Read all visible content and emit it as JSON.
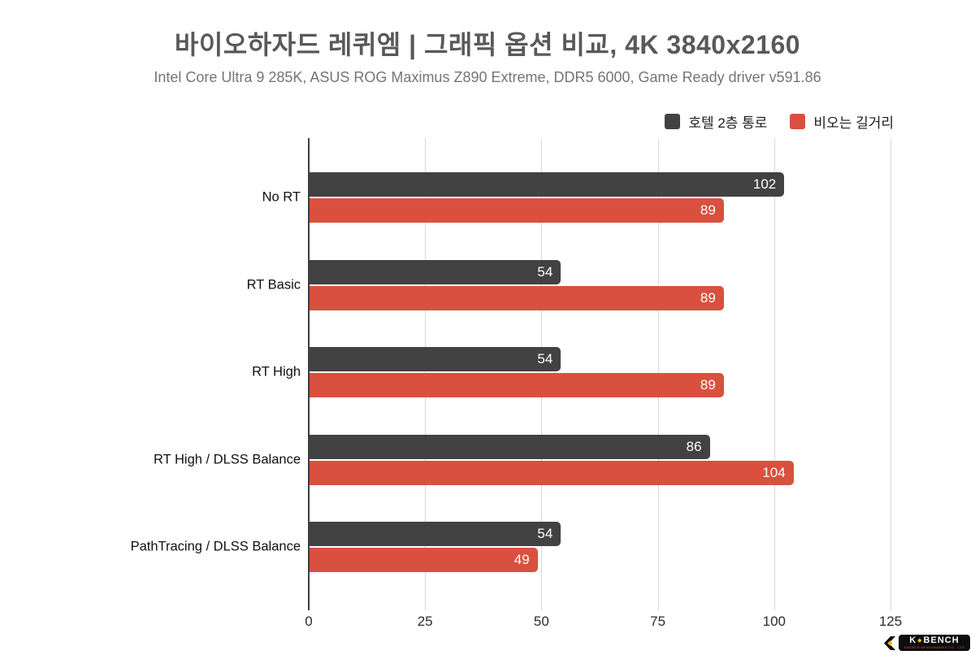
{
  "header": {
    "title": "바이오하자드 레퀴엠 | 그래픽 옵션 비교, 4K 3840x2160",
    "subtitle": "Intel Core Ultra 9 285K, ASUS ROG Maximus Z890 Extreme, DDR5 6000, Game Ready driver v591.86"
  },
  "colors": {
    "series1": "#424242",
    "series2": "#d9503f",
    "grid": "#d9d9d9",
    "axis": "#3d3d3d",
    "title": "#595959",
    "subtitle": "#757575"
  },
  "chart_data": {
    "type": "bar",
    "orientation": "horizontal",
    "title": "바이오하자드 레퀴엠 | 그래픽 옵션 비교, 4K 3840x2160",
    "subtitle": "Intel Core Ultra 9 285K, ASUS ROG Maximus Z890 Extreme, DDR5 6000, Game Ready driver v591.86",
    "categories": [
      "No RT",
      "RT Basic",
      "RT High",
      "RT High / DLSS Balance",
      "PathTracing / DLSS Balance"
    ],
    "series": [
      {
        "name": "호텔 2층 통로",
        "color": "#424242",
        "values": [
          102,
          54,
          54,
          86,
          54
        ]
      },
      {
        "name": "비오는 길거리",
        "color": "#d9503f",
        "values": [
          89,
          89,
          89,
          104,
          49
        ]
      }
    ],
    "xlabel": "",
    "ylabel": "",
    "xlim": [
      0,
      125
    ],
    "xticks": [
      0,
      25,
      50,
      75,
      100,
      125
    ],
    "grid": true,
    "legend_position": "top-right",
    "value_labels": "inside-end"
  },
  "logo": {
    "word_left": "K",
    "word_right": "BENCH",
    "diamond": "◆",
    "subtext": "KBENCH BENCHMARKS CO., LTD"
  }
}
